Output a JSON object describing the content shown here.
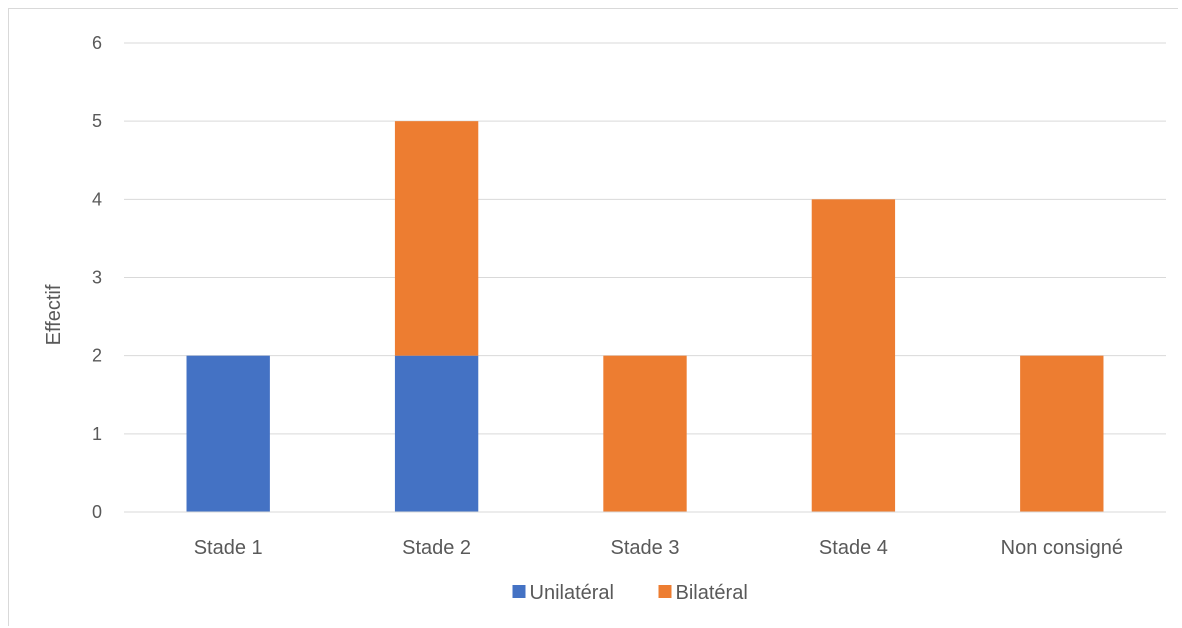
{
  "chart_data": {
    "type": "bar",
    "stacked": true,
    "title": "",
    "xlabel": "",
    "ylabel": "Effectif",
    "categories": [
      "Stade 1",
      "Stade 2",
      "Stade 3",
      "Stade 4",
      "Non consigné"
    ],
    "series": [
      {
        "name": "Unilatéral",
        "color": "#4472c4",
        "values": [
          2,
          2,
          0,
          0,
          0
        ]
      },
      {
        "name": "Bilatéral",
        "color": "#ed7d31",
        "values": [
          0,
          3,
          2,
          4,
          2
        ]
      }
    ],
    "ylim": [
      0,
      6
    ],
    "yticks": [
      "0",
      "1",
      "2",
      "3",
      "4",
      "5",
      "6"
    ],
    "grid": true,
    "legend_position": "bottom"
  }
}
